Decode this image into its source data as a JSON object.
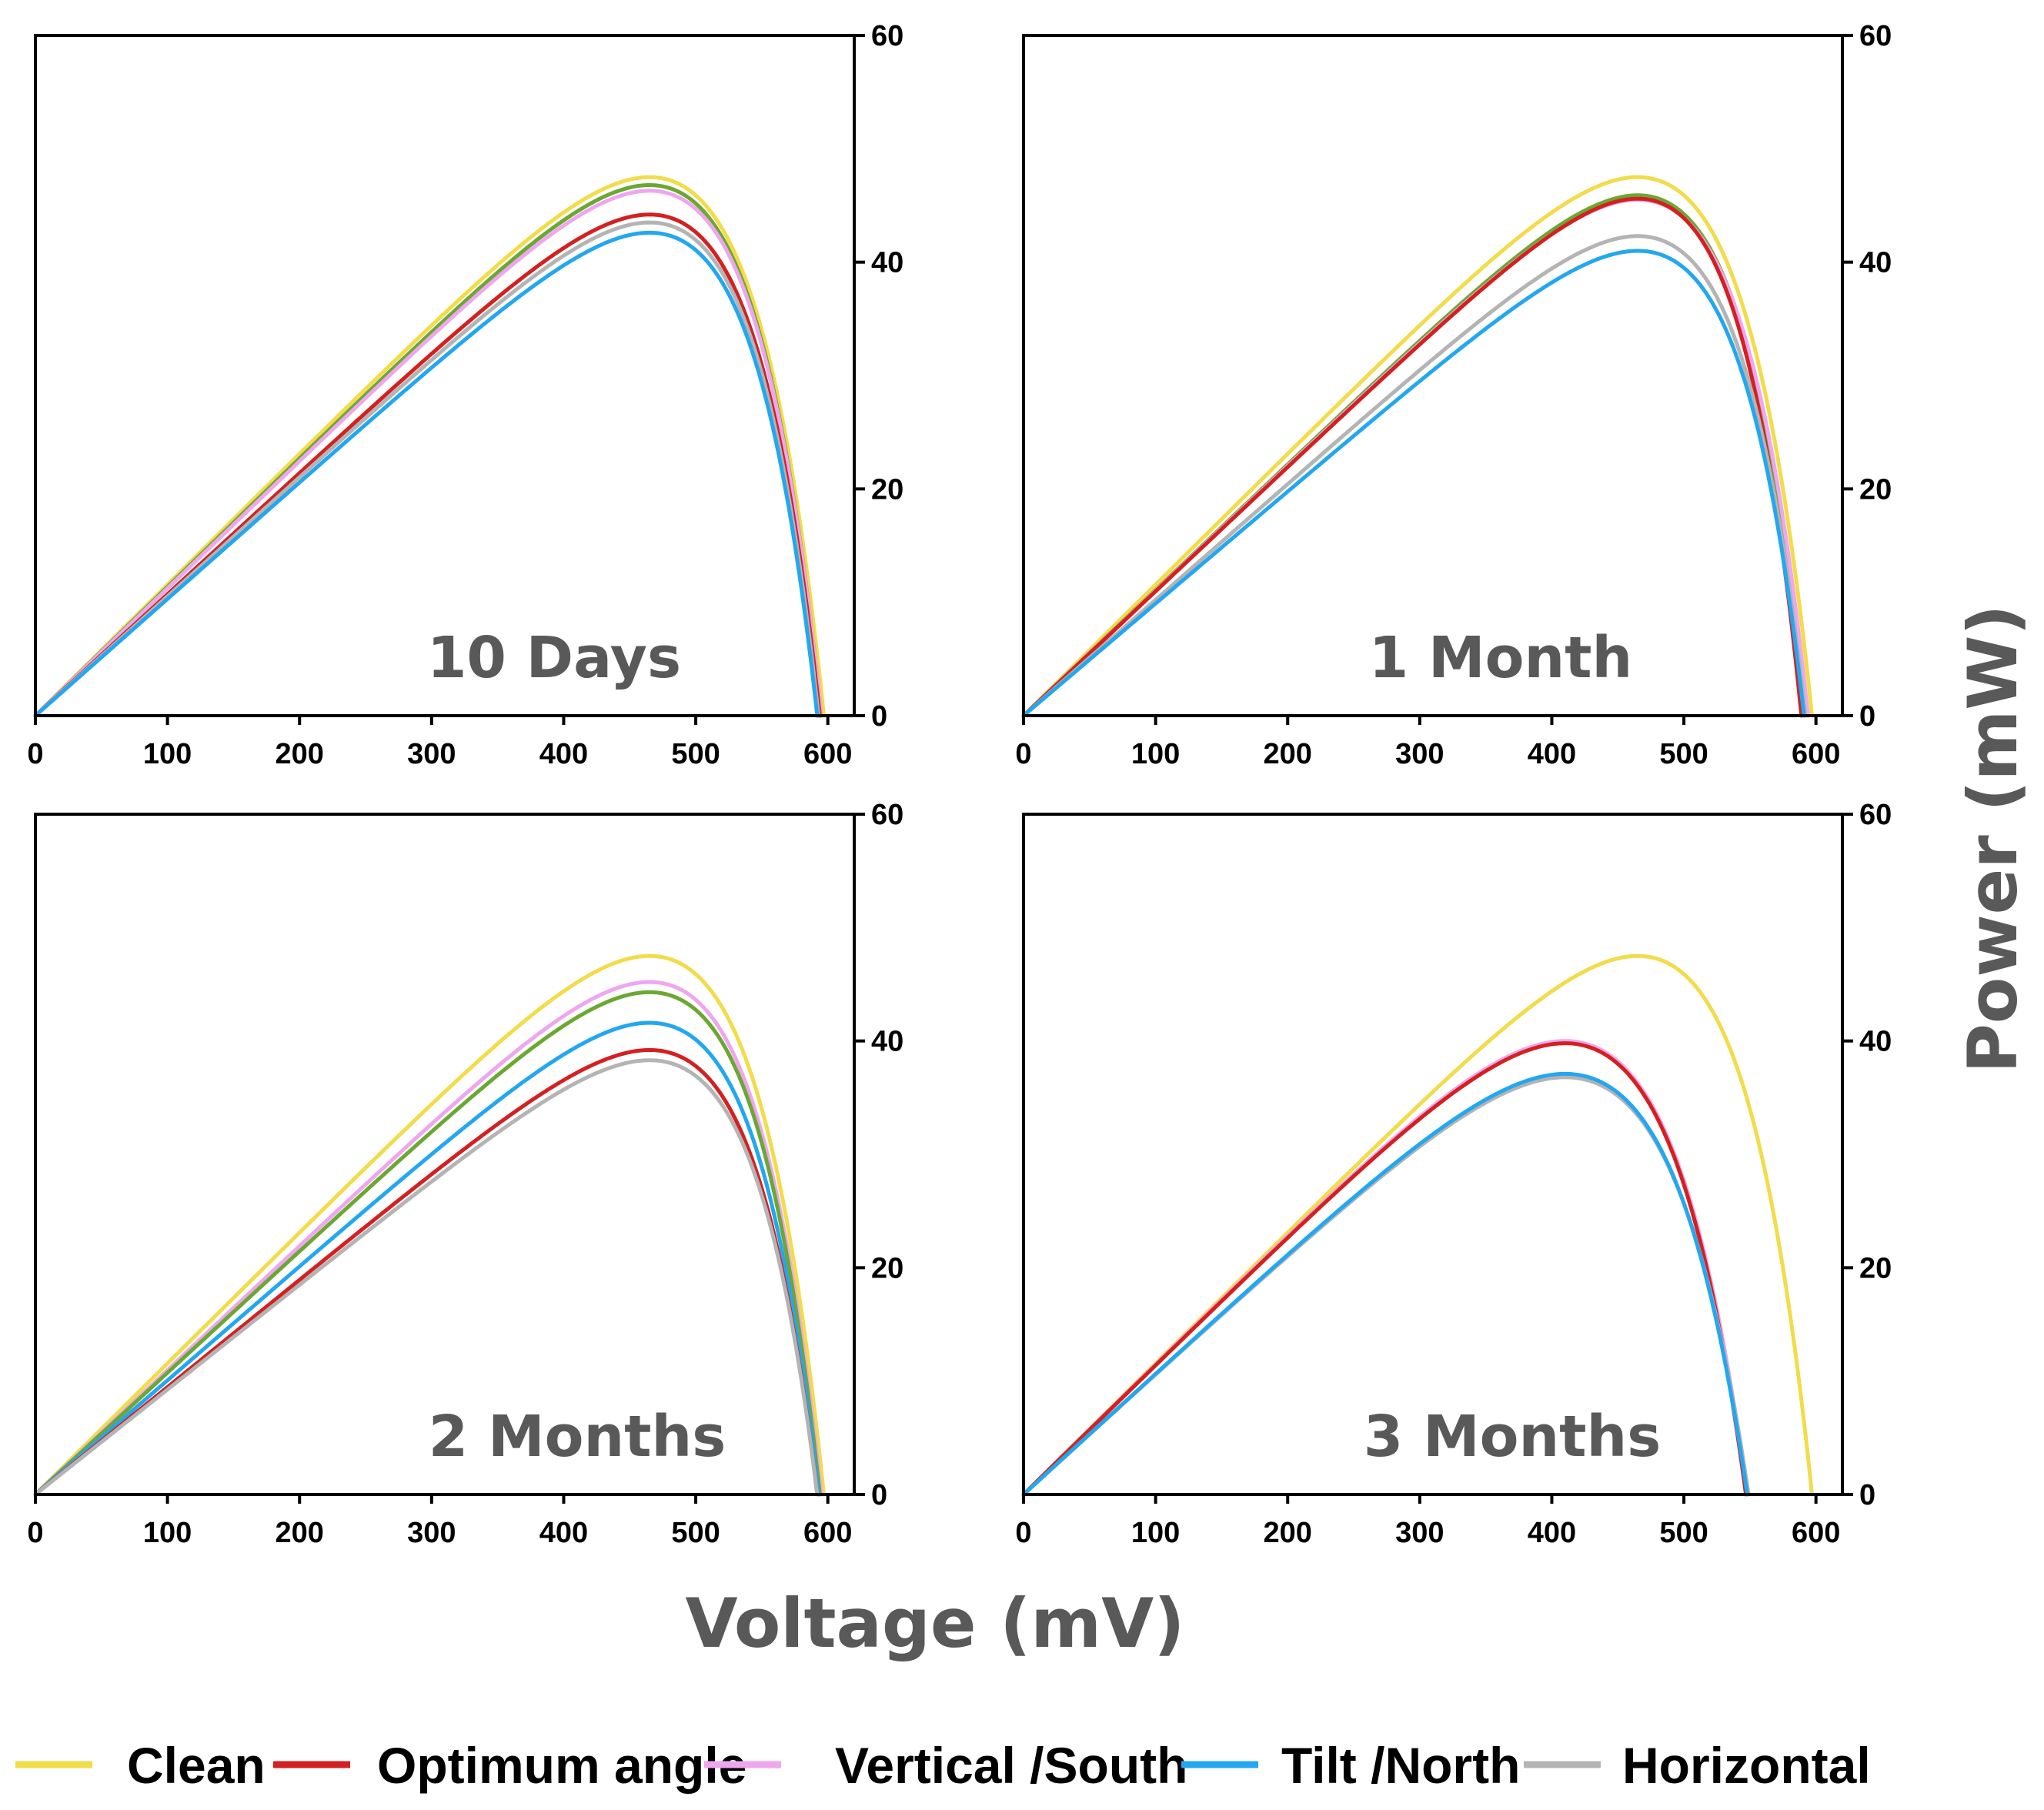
{
  "chart_data": {
    "type": "line",
    "xlabel": "Voltage (mV)",
    "ylabel": "Power (mW)",
    "xlim": [
      0,
      620
    ],
    "ylim": [
      0,
      60
    ],
    "xticks": [
      0,
      100,
      200,
      300,
      400,
      500,
      600
    ],
    "yticks": [
      0,
      20,
      40,
      60
    ],
    "legend_position": "bottom",
    "series_styles": [
      {
        "name": "Clean",
        "color": "#f2dc4a"
      },
      {
        "name": "Optimum angle",
        "color": "#d42020"
      },
      {
        "name": "Vertical /South",
        "color": "#efa6ef"
      },
      {
        "name": "Tilt /North",
        "color": "#22a7f0"
      },
      {
        "name": "Horizontal",
        "color": "#b4b4b4"
      },
      {
        "name": "",
        "color": "#6ba832"
      }
    ],
    "panels": [
      {
        "label": "10 Days",
        "series": [
          {
            "name": "Clean",
            "color": "#f2dc4a",
            "peak_v": 465,
            "peak_p": 47.5,
            "voc": 597
          },
          {
            "name": "",
            "color": "#6ba832",
            "peak_v": 465,
            "peak_p": 46.8,
            "voc": 595
          },
          {
            "name": "Vertical /South",
            "color": "#efa6ef",
            "peak_v": 465,
            "peak_p": 46.3,
            "voc": 595
          },
          {
            "name": "Optimum angle",
            "color": "#d42020",
            "peak_v": 465,
            "peak_p": 44.2,
            "voc": 594
          },
          {
            "name": "Horizontal",
            "color": "#b4b4b4",
            "peak_v": 465,
            "peak_p": 43.5,
            "voc": 593
          },
          {
            "name": "Tilt /North",
            "color": "#22a7f0",
            "peak_v": 465,
            "peak_p": 42.6,
            "voc": 592
          }
        ]
      },
      {
        "label": "1 Month",
        "series": [
          {
            "name": "Clean",
            "color": "#f2dc4a",
            "peak_v": 465,
            "peak_p": 47.5,
            "voc": 597
          },
          {
            "name": "",
            "color": "#6ba832",
            "peak_v": 465,
            "peak_p": 45.9,
            "voc": 592
          },
          {
            "name": "Vertical /South",
            "color": "#efa6ef",
            "peak_v": 465,
            "peak_p": 45.5,
            "voc": 594
          },
          {
            "name": "Optimum angle",
            "color": "#d42020",
            "peak_v": 465,
            "peak_p": 45.6,
            "voc": 589
          },
          {
            "name": "Horizontal",
            "color": "#b4b4b4",
            "peak_v": 465,
            "peak_p": 42.3,
            "voc": 592
          },
          {
            "name": "Tilt /North",
            "color": "#22a7f0",
            "peak_v": 465,
            "peak_p": 41.0,
            "voc": 591
          }
        ]
      },
      {
        "label": "2 Months",
        "series": [
          {
            "name": "Clean",
            "color": "#f2dc4a",
            "peak_v": 465,
            "peak_p": 47.5,
            "voc": 597
          },
          {
            "name": "Vertical /South",
            "color": "#efa6ef",
            "peak_v": 465,
            "peak_p": 45.2,
            "voc": 595
          },
          {
            "name": "",
            "color": "#6ba832",
            "peak_v": 465,
            "peak_p": 44.3,
            "voc": 594
          },
          {
            "name": "Tilt /North",
            "color": "#22a7f0",
            "peak_v": 465,
            "peak_p": 41.6,
            "voc": 593
          },
          {
            "name": "Optimum angle",
            "color": "#d42020",
            "peak_v": 465,
            "peak_p": 39.2,
            "voc": 592
          },
          {
            "name": "Horizontal",
            "color": "#b4b4b4",
            "peak_v": 465,
            "peak_p": 38.3,
            "voc": 592
          }
        ]
      },
      {
        "label": "3 Months",
        "series": [
          {
            "name": "Clean",
            "color": "#f2dc4a",
            "peak_v": 465,
            "peak_p": 47.5,
            "voc": 597
          },
          {
            "name": "Vertical /South",
            "color": "#efa6ef",
            "peak_v": 410,
            "peak_p": 40.0,
            "voc": 548
          },
          {
            "name": "Optimum angle",
            "color": "#d42020",
            "peak_v": 410,
            "peak_p": 39.8,
            "voc": 547
          },
          {
            "name": "Horizontal",
            "color": "#b4b4b4",
            "peak_v": 410,
            "peak_p": 36.8,
            "voc": 549
          },
          {
            "name": "Tilt /North",
            "color": "#22a7f0",
            "peak_v": 410,
            "peak_p": 37.1,
            "voc": 548
          }
        ]
      }
    ]
  }
}
